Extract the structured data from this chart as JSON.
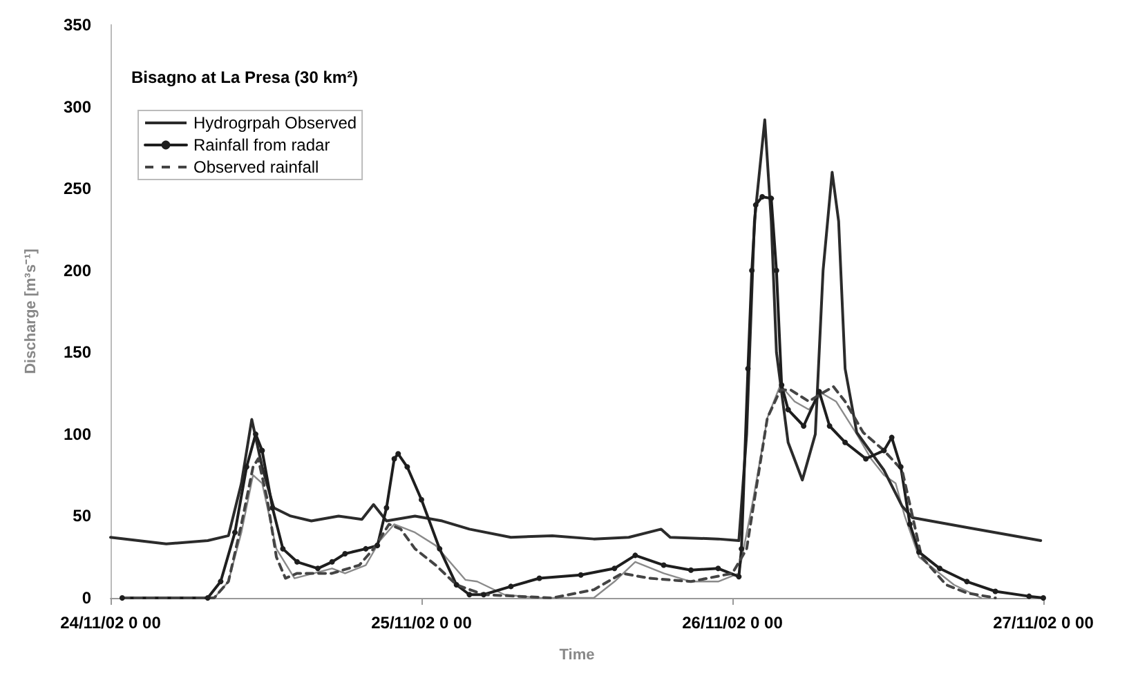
{
  "chart_data": {
    "type": "line",
    "title": "Bisagno at La Presa (30 km²)",
    "xlabel": "Time",
    "ylabel": "Discharge [m³s⁻¹]",
    "xlim": [
      "--11-24T00:00",
      "--11-27T00:00"
    ],
    "xticks": [
      {
        "value": "--11-24T00:00",
        "label": "24/11/02 0 00"
      },
      {
        "value": "--11-25T00:00",
        "label": "25/11/02 0 00"
      },
      {
        "value": "--11-26T00:00",
        "label": "26/11/02 0 00"
      },
      {
        "value": "--11-27T00:00",
        "label": "27/11/02 0 00"
      }
    ],
    "ylim": [
      0,
      350
    ],
    "yticks": [
      0,
      50,
      100,
      150,
      200,
      250,
      300,
      350
    ],
    "grid": false,
    "legend": "top left",
    "series": [
      {
        "name": "Hydrogrpah Observed",
        "color": "#2b2b2b",
        "marker": "none",
        "line_style": "solid",
        "x": [
          "--11-24T00:00",
          "--11-24T04:18",
          "--11-24T07:30",
          "--11-24T09:06",
          "--11-24T10:06",
          "--11-24T10:54",
          "--11-24T11:42",
          "--11-24T12:36",
          "--11-24T13:54",
          "--11-24T15:30",
          "--11-24T17:36",
          "--11-24T19:24",
          "--11-24T20:18",
          "--11-24T21:18",
          "--11-24T23:30",
          "--11-25T01:36",
          "--11-25T03:42",
          "--11-25T06:54",
          "--11-25T10:06",
          "--11-25T13:18",
          "--11-25T16:00",
          "--11-25T18:30",
          "--11-25T19:12",
          "--11-25T22:54",
          "--11-26T00:30",
          "--11-26T01:06",
          "--11-26T01:42",
          "--11-26T02:30",
          "--11-26T03:00",
          "--11-26T03:24",
          "--11-26T04:18",
          "--11-26T05:24",
          "--11-26T06:24",
          "--11-26T07:00",
          "--11-26T07:42",
          "--11-26T08:12",
          "--11-26T08:42",
          "--11-26T09:36",
          "--11-26T11:42",
          "--11-26T13:06",
          "--11-26T13:54",
          "--11-26T18:06",
          "--11-26T23:48"
        ],
        "values": [
          37,
          33,
          35,
          38,
          70,
          109,
          80,
          55,
          50,
          47,
          50,
          48,
          57,
          47,
          50,
          47,
          42,
          37,
          38,
          36,
          37,
          42,
          37,
          36,
          35,
          100,
          230,
          292,
          230,
          150,
          95,
          72,
          100,
          200,
          260,
          230,
          140,
          101,
          78,
          56,
          49,
          43,
          35
        ]
      },
      {
        "name": "Rainfall from radar",
        "color": "#1e1e1e",
        "marker": "circle",
        "line_style": "solid",
        "x": [
          "--11-24T00:54",
          "--11-24T07:30",
          "--11-24T08:30",
          "--11-24T09:36",
          "--11-24T10:30",
          "--11-24T11:12",
          "--11-24T11:42",
          "--11-24T12:30",
          "--11-24T13:18",
          "--11-24T14:24",
          "--11-24T16:00",
          "--11-24T17:06",
          "--11-24T18:06",
          "--11-24T19:42",
          "--11-24T20:36",
          "--11-24T21:18",
          "--11-24T21:54",
          "--11-24T22:12",
          "--11-24T22:54",
          "--11-25T00:00",
          "--11-25T01:24",
          "--11-25T02:42",
          "--11-25T03:42",
          "--11-25T04:48",
          "--11-25T06:54",
          "--11-25T09:06",
          "--11-25T12:18",
          "--11-25T14:54",
          "--11-25T16:30",
          "--11-25T18:42",
          "--11-25T20:48",
          "--11-25T22:54",
          "--11-26T00:30",
          "--11-26T00:42",
          "--11-26T01:12",
          "--11-26T01:30",
          "--11-26T01:48",
          "--11-26T02:18",
          "--11-26T03:00",
          "--11-26T03:24",
          "--11-26T03:48",
          "--11-26T04:18",
          "--11-26T05:30",
          "--11-26T06:42",
          "--11-26T07:30",
          "--11-26T08:42",
          "--11-26T10:18",
          "--11-26T11:42",
          "--11-26T12:18",
          "--11-26T13:00",
          "--11-26T13:42",
          "--11-26T14:24",
          "--11-26T16:00",
          "--11-26T18:06",
          "--11-26T20:18",
          "--11-26T22:54",
          "--11-27T00:00"
        ],
        "values": [
          0,
          0,
          10,
          40,
          80,
          100,
          90,
          55,
          30,
          22,
          18,
          22,
          27,
          30,
          32,
          55,
          85,
          88,
          80,
          60,
          30,
          8,
          2,
          2,
          7,
          12,
          14,
          18,
          26,
          20,
          17,
          18,
          13,
          30,
          140,
          200,
          240,
          245,
          244,
          200,
          130,
          115,
          105,
          126,
          105,
          95,
          85,
          90,
          98,
          80,
          45,
          28,
          18,
          10,
          4,
          1,
          0
        ]
      },
      {
        "name": "Observed rainfall",
        "color": "#444444",
        "marker": "none",
        "line_style": "dashed",
        "x": [
          "--11-24T00:54",
          "--11-24T08:00",
          "--11-24T09:06",
          "--11-24T10:06",
          "--11-24T11:00",
          "--11-24T11:24",
          "--11-24T12:06",
          "--11-24T12:48",
          "--11-24T13:30",
          "--11-24T14:24",
          "--11-24T17:06",
          "--11-24T19:12",
          "--11-24T20:18",
          "--11-24T21:30",
          "--11-24T22:24",
          "--11-24T23:30",
          "--11-25T01:06",
          "--11-25T02:42",
          "--11-25T04:48",
          "--11-25T10:06",
          "--11-25T13:18",
          "--11-25T15:30",
          "--11-25T17:36",
          "--11-25T20:48",
          "--11-26T00:00",
          "--11-26T01:06",
          "--11-26T01:54",
          "--11-26T02:42",
          "--11-26T03:42",
          "--11-26T04:30",
          "--11-26T05:54",
          "--11-26T06:54",
          "--11-26T07:48",
          "--11-26T08:42",
          "--11-26T10:06",
          "--11-26T11:42",
          "--11-26T13:06",
          "--11-26T13:54",
          "--11-26T14:36",
          "--11-26T16:30",
          "--11-26T18:06",
          "--11-26T20:18"
        ],
        "values": [
          0,
          0,
          10,
          45,
          80,
          85,
          60,
          25,
          12,
          15,
          15,
          20,
          30,
          45,
          42,
          30,
          20,
          8,
          2,
          0,
          5,
          15,
          12,
          10,
          15,
          30,
          70,
          110,
          127,
          127,
          120,
          125,
          129,
          120,
          101,
          90,
          78,
          50,
          25,
          8,
          3,
          0
        ]
      },
      {
        "color": "#8a8a8a",
        "marker": "none",
        "line_style": "solid",
        "x": [
          "--11-24T08:00",
          "--11-24T09:06",
          "--11-24T10:06",
          "--11-24T11:00",
          "--11-24T11:42",
          "--11-24T12:48",
          "--11-24T14:12",
          "--11-24T17:06",
          "--11-24T18:06",
          "--11-24T19:42",
          "--11-24T20:48",
          "--11-24T21:54",
          "--11-24T23:30",
          "--11-25T01:06",
          "--11-25T03:24",
          "--11-25T04:18",
          "--11-25T06:24",
          "--11-25T09:06",
          "--11-25T13:18",
          "--11-25T14:54",
          "--11-25T16:30",
          "--11-25T18:42",
          "--11-25T20:48",
          "--11-25T22:54",
          "--11-26T00:30",
          "--11-26T01:36",
          "--11-26T02:42",
          "--11-26T03:42",
          "--11-26T04:48",
          "--11-26T05:54",
          "--11-26T06:54",
          "--11-26T08:00",
          "--11-26T09:36",
          "--11-26T10:42",
          "--11-26T11:42",
          "--11-26T12:36",
          "--11-26T13:18",
          "--11-26T14:24",
          "--11-26T17:06",
          "--11-26T19:12"
        ],
        "values": [
          0,
          10,
          40,
          75,
          70,
          30,
          12,
          18,
          15,
          20,
          35,
          45,
          40,
          32,
          11,
          10,
          2,
          0,
          0,
          10,
          22,
          15,
          10,
          10,
          15,
          60,
          110,
          130,
          120,
          115,
          125,
          120,
          100,
          85,
          75,
          70,
          50,
          25,
          8,
          0
        ]
      }
    ]
  }
}
